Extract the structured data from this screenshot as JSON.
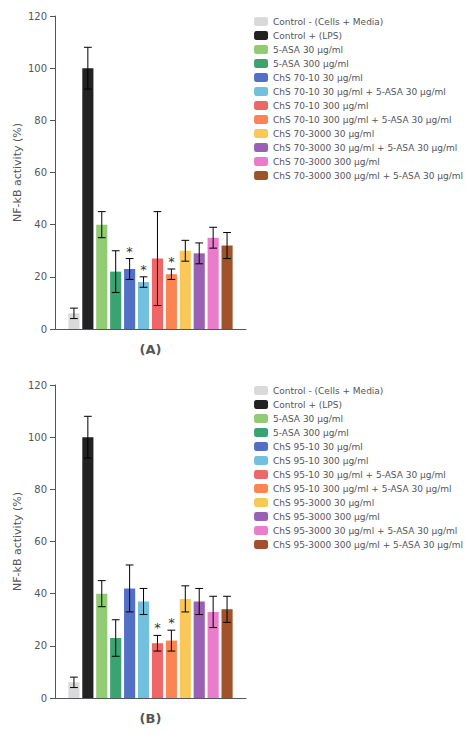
{
  "chart_data": [
    {
      "type": "bar",
      "xlabel": "(A)",
      "ylabel": "NF-kB activity (%)",
      "categories": [
        null
      ],
      "series": [
        {
          "name": "Control - (Cells + Media)",
          "color": "#d9d9d9",
          "values": [
            6
          ],
          "errors": [
            2
          ]
        },
        {
          "name": "Control + (LPS)",
          "color": "#222222",
          "values": [
            100
          ],
          "errors": [
            8
          ]
        },
        {
          "name": "5-ASA 30 μg/ml",
          "color": "#91cc75",
          "values": [
            40
          ],
          "errors": [
            5
          ]
        },
        {
          "name": "5-ASA 300 μg/ml",
          "color": "#3ba272",
          "values": [
            22
          ],
          "errors": [
            8
          ]
        },
        {
          "name": "ChS 70-10 30 μg/ml",
          "color": "#5470c6",
          "values": [
            23
          ],
          "errors": [
            4
          ]
        },
        {
          "name": "ChS 70-10 30 μg/ml + 5-ASA 30 μg/ml",
          "color": "#73c0de",
          "values": [
            18
          ],
          "errors": [
            2
          ]
        },
        {
          "name": "ChS 70-10 300 μg/ml",
          "color": "#ee6666",
          "values": [
            27
          ],
          "errors": [
            18
          ]
        },
        {
          "name": "ChS 70-10 300 μg/ml + 5-ASA 30 μg/ml",
          "color": "#fc8452",
          "values": [
            21
          ],
          "errors": [
            2
          ]
        },
        {
          "name": "ChS 70-3000 30 μg/ml",
          "color": "#fac858",
          "values": [
            30
          ],
          "errors": [
            4
          ]
        },
        {
          "name": "ChS 70-3000 30 μg/ml + 5-ASA 30 μg/ml",
          "color": "#9a60b4",
          "values": [
            29
          ],
          "errors": [
            4
          ]
        },
        {
          "name": "ChS 70-3000 300 μg/ml",
          "color": "#ea7ccc",
          "values": [
            35
          ],
          "errors": [
            4
          ]
        },
        {
          "name": "ChS 70-3000 300 μg/ml + 5-ASA 30 μg/ml",
          "color": "#a0522d",
          "values": [
            32
          ],
          "errors": [
            5
          ]
        }
      ],
      "annotations": [
        {
          "series": "ChS 70-10 30 μg/ml",
          "text": "*"
        },
        {
          "series": "ChS 70-10 30 μg/ml + 5-ASA 30 μg/ml",
          "text": "*"
        },
        {
          "series": "ChS 70-10 300 μg/ml + 5-ASA 30 μg/ml",
          "text": "*"
        }
      ],
      "ylim": [
        0,
        120
      ],
      "yticks": [
        0,
        20,
        40,
        60,
        80,
        100,
        120
      ],
      "grid": false,
      "legend": "upper right",
      "tick_labels": "y"
    },
    {
      "type": "bar",
      "xlabel": "(B)",
      "ylabel": "NF-kB activity (%)",
      "categories": [
        null
      ],
      "series": [
        {
          "name": "Control - (Cells + Media)",
          "color": "#d9d9d9",
          "values": [
            6
          ],
          "errors": [
            2
          ]
        },
        {
          "name": "Control + (LPS)",
          "color": "#222222",
          "values": [
            100
          ],
          "errors": [
            8
          ]
        },
        {
          "name": "5-ASA 30 μg/ml",
          "color": "#91cc75",
          "values": [
            40
          ],
          "errors": [
            5
          ]
        },
        {
          "name": "5-ASA 300 μg/ml",
          "color": "#3ba272",
          "values": [
            23
          ],
          "errors": [
            7
          ]
        },
        {
          "name": "ChS 95-10 30 μg/ml",
          "color": "#5470c6",
          "values": [
            42
          ],
          "errors": [
            9
          ]
        },
        {
          "name": "ChS 95-10 300 μg/ml",
          "color": "#73c0de",
          "values": [
            37
          ],
          "errors": [
            5
          ]
        },
        {
          "name": "ChS 95-10 30 μg/ml + 5-ASA 30 μg/ml",
          "color": "#ee6666",
          "values": [
            21
          ],
          "errors": [
            3
          ]
        },
        {
          "name": "ChS 95-10 300 μg/ml + 5-ASA 30 μg/ml",
          "color": "#fc8452",
          "values": [
            22
          ],
          "errors": [
            4
          ]
        },
        {
          "name": "ChS 95-3000 30 μg/ml",
          "color": "#fac858",
          "values": [
            38
          ],
          "errors": [
            5
          ]
        },
        {
          "name": "ChS 95-3000 300 μg/ml",
          "color": "#9a60b4",
          "values": [
            37
          ],
          "errors": [
            5
          ]
        },
        {
          "name": "ChS 95-3000 30 μg/ml + 5-ASA 30 μg/ml",
          "color": "#ea7ccc",
          "values": [
            33
          ],
          "errors": [
            6
          ]
        },
        {
          "name": "ChS 95-3000 300 μg/ml + 5-ASA 30 μg/ml",
          "color": "#a0522d",
          "values": [
            34
          ],
          "errors": [
            5
          ]
        }
      ],
      "annotations": [
        {
          "series": "ChS 95-10 30 μg/ml + 5-ASA 30 μg/ml",
          "text": "*"
        },
        {
          "series": "ChS 95-10 300 μg/ml + 5-ASA 30 μg/ml",
          "text": "*"
        }
      ],
      "ylim": [
        0,
        120
      ],
      "yticks": [
        0,
        20,
        40,
        60,
        80,
        100,
        120
      ],
      "grid": false,
      "legend": "upper right",
      "tick_labels": "y"
    }
  ]
}
